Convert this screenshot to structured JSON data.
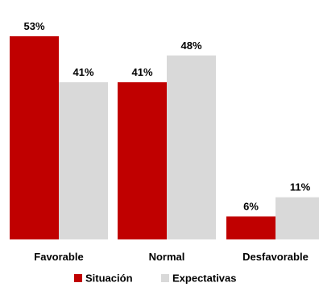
{
  "chart_data": {
    "type": "bar",
    "categories": [
      "Favorable",
      "Normal",
      "Desfavorable"
    ],
    "series": [
      {
        "name": "Situación",
        "values": [
          53,
          41,
          6
        ],
        "labels": [
          "53%",
          "41%",
          "6%"
        ],
        "color": "#c00000"
      },
      {
        "name": "Expectativas",
        "values": [
          41,
          48,
          11
        ],
        "labels": [
          "41%",
          "48%",
          "11%"
        ],
        "color": "#d9d9d9"
      }
    ],
    "ylim": [
      0,
      53
    ],
    "grid": false,
    "legend_position": "bottom",
    "title": "",
    "xlabel": "",
    "ylabel": ""
  }
}
